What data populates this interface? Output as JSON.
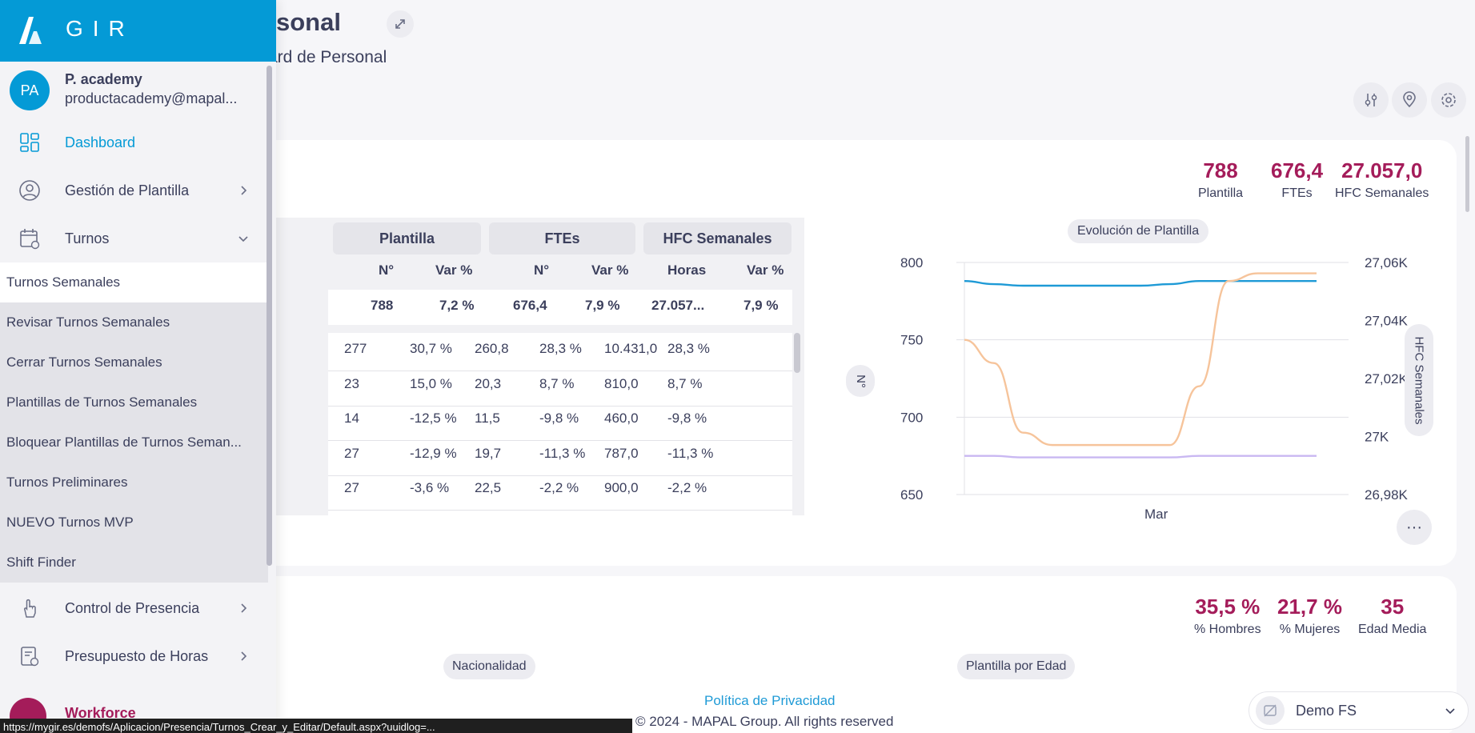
{
  "sidebar": {
    "brand": "GIR",
    "user": {
      "initials": "PA",
      "name": "P. academy",
      "email": "productacademy@mapal..."
    },
    "nav": [
      {
        "label": "Dashboard",
        "icon": "dashboard-icon",
        "active": true
      },
      {
        "label": "Gestión de Plantilla",
        "icon": "user-icon"
      },
      {
        "label": "Turnos",
        "icon": "calendar-icon",
        "expanded": true
      },
      {
        "label": "Control de Presencia",
        "icon": "hand-pointer-icon"
      },
      {
        "label": "Presupuesto de Horas",
        "icon": "document-clock-icon"
      }
    ],
    "subitems": [
      "Turnos Semanales",
      "Revisar Turnos Semanales",
      "Cerrar Turnos Semanales",
      "Plantillas de Turnos Semanales",
      "Bloquear Plantillas de Turnos Seman...",
      "Turnos Preliminares",
      "NUEVO Turnos MVP",
      "Shift Finder"
    ],
    "workforce": "Workforce"
  },
  "header": {
    "title": "Personal",
    "subtitle": "ard de Personal"
  },
  "kpis_top": [
    {
      "value": "788",
      "label": "Plantilla"
    },
    {
      "value": "676,4",
      "label": "FTEs"
    },
    {
      "value": "27.057,0",
      "label": "HFC Semanales"
    }
  ],
  "table": {
    "groups": [
      "Plantilla",
      "FTEs",
      "HFC Semanales"
    ],
    "subheaders": [
      "N°",
      "Var %",
      "N°",
      "Var %",
      "Horas",
      "Var %"
    ],
    "totals": [
      "788",
      "7,2 %",
      "676,4",
      "7,9 %",
      "27.057...",
      "7,9 %"
    ],
    "rows": [
      [
        "277",
        "30,7 %",
        "260,8",
        "28,3 %",
        "10.431,0",
        "28,3 %"
      ],
      [
        "23",
        "15,0 %",
        "20,3",
        "8,7 %",
        "810,0",
        "8,7 %"
      ],
      [
        "14",
        "-12,5 %",
        "11,5",
        "-9,8 %",
        "460,0",
        "-9,8 %"
      ],
      [
        "27",
        "-12,9 %",
        "19,7",
        "-11,3 %",
        "787,0",
        "-11,3 %"
      ],
      [
        "27",
        "-3,6 %",
        "22,5",
        "-2,2 %",
        "900,0",
        "-2,2 %"
      ]
    ]
  },
  "chart_data": {
    "type": "line",
    "title": "Evolución de Plantilla",
    "xlabel": "Mar",
    "ylabel": "N°",
    "y2label": "HFC Semanales",
    "ylim": [
      650,
      800
    ],
    "y2lim": [
      26980,
      27060
    ],
    "yticks": [
      "800",
      "750",
      "700",
      "650"
    ],
    "y2ticks": [
      "27,06K",
      "27,04K",
      "27,02K",
      "27K",
      "26,98K"
    ],
    "x": [
      0,
      1,
      2,
      3,
      4,
      5,
      6,
      7,
      8,
      9,
      10,
      11,
      12
    ],
    "series": [
      {
        "color": "#1e9ad6",
        "axis": "left",
        "values": [
          788,
          786,
          785,
          785,
          785,
          785,
          785,
          786,
          788,
          788,
          788,
          788,
          788
        ]
      },
      {
        "color": "#f6c49b",
        "axis": "left",
        "values": [
          750,
          735,
          690,
          682,
          682,
          682,
          682,
          682,
          720,
          788,
          793,
          793,
          793
        ]
      },
      {
        "color": "#c9b8f2",
        "axis": "left",
        "values": [
          675,
          675,
          674,
          674,
          674,
          674,
          674,
          674,
          675,
          675,
          675,
          675,
          675
        ]
      }
    ]
  },
  "kpis_bottom": [
    {
      "value": "35,5 %",
      "label": "% Hombres"
    },
    {
      "value": "21,7 %",
      "label": "% Mujeres"
    },
    {
      "value": "35",
      "label": "Edad Media"
    }
  ],
  "pills": [
    "Nacionalidad",
    "Plantilla por Edad"
  ],
  "footer": {
    "link": "Política de Privacidad",
    "copyright": "© 2024 - MAPAL Group. All rights reserved"
  },
  "selector": "Demo FS",
  "status_url": "https://mygir.es/demofs/Aplicacion/Presencia/Turnos_Crear_y_Editar/Default.aspx?uuidlog=..."
}
